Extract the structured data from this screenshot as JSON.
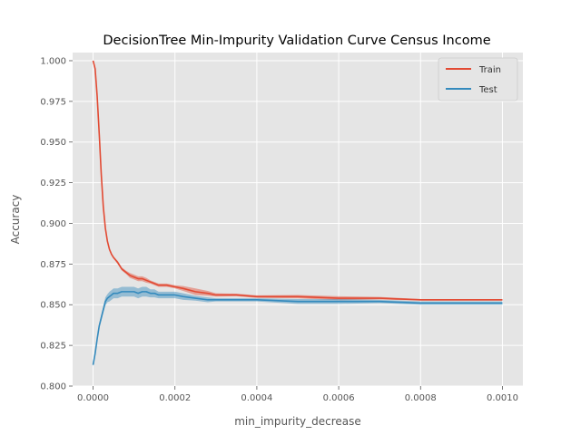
{
  "chart_data": {
    "type": "line",
    "title": "DecisionTree Min-Impurity Validation Curve Census Income",
    "xlabel": "min_impurity_decrease",
    "ylabel": "Accuracy",
    "xlim": [
      -5e-05,
      0.00105
    ],
    "ylim": [
      0.8,
      1.005
    ],
    "xticks": [
      0.0,
      0.0002,
      0.0004,
      0.0006,
      0.0008,
      0.001
    ],
    "xtick_labels": [
      "0.0000",
      "0.0002",
      "0.0004",
      "0.0006",
      "0.0008",
      "0.0010"
    ],
    "yticks": [
      0.8,
      0.825,
      0.85,
      0.875,
      0.9,
      0.925,
      0.95,
      0.975,
      1.0
    ],
    "ytick_labels": [
      "0.800",
      "0.825",
      "0.850",
      "0.875",
      "0.900",
      "0.925",
      "0.950",
      "0.975",
      "1.000"
    ],
    "grid": true,
    "legend_position": "top-right",
    "series": [
      {
        "name": "Train",
        "color": "#E24A33",
        "x": [
          0.0,
          5e-06,
          1e-05,
          1.5e-05,
          2e-05,
          2.5e-05,
          3e-05,
          3.5e-05,
          4e-05,
          4.5e-05,
          5e-05,
          6e-05,
          7e-05,
          8e-05,
          9e-05,
          0.0001,
          0.00011,
          0.00012,
          0.00013,
          0.00014,
          0.00015,
          0.00016,
          0.00018,
          0.0002,
          0.00022,
          0.00025,
          0.00028,
          0.0003,
          0.00035,
          0.0004,
          0.0005,
          0.0006,
          0.0007,
          0.0008,
          0.0009,
          0.001
        ],
        "values": [
          1.0,
          0.995,
          0.978,
          0.955,
          0.93,
          0.91,
          0.897,
          0.889,
          0.884,
          0.881,
          0.879,
          0.876,
          0.872,
          0.87,
          0.868,
          0.867,
          0.866,
          0.866,
          0.865,
          0.864,
          0.863,
          0.862,
          0.862,
          0.861,
          0.86,
          0.858,
          0.857,
          0.856,
          0.856,
          0.855,
          0.855,
          0.854,
          0.854,
          0.853,
          0.853,
          0.853
        ],
        "band": [
          0.0,
          0.0,
          0.0,
          0.0005,
          0.0005,
          0.0005,
          0.0005,
          0.0005,
          0.0005,
          0.0005,
          0.0005,
          0.001,
          0.001,
          0.001,
          0.0015,
          0.0015,
          0.0015,
          0.0015,
          0.0015,
          0.001,
          0.001,
          0.001,
          0.001,
          0.001,
          0.0015,
          0.002,
          0.0015,
          0.001,
          0.0008,
          0.0008,
          0.001,
          0.0012,
          0.0008,
          0.0005,
          0.0005,
          0.0005
        ]
      },
      {
        "name": "Test",
        "color": "#348ABD",
        "x": [
          0.0,
          5e-06,
          1e-05,
          1.5e-05,
          2e-05,
          2.5e-05,
          3e-05,
          3.5e-05,
          4e-05,
          4.5e-05,
          5e-05,
          6e-05,
          7e-05,
          8e-05,
          9e-05,
          0.0001,
          0.00011,
          0.00012,
          0.00013,
          0.00014,
          0.00015,
          0.00016,
          0.00018,
          0.0002,
          0.00022,
          0.00025,
          0.00028,
          0.0003,
          0.00035,
          0.0004,
          0.0005,
          0.0006,
          0.0007,
          0.0008,
          0.0009,
          0.001
        ],
        "values": [
          0.813,
          0.82,
          0.829,
          0.837,
          0.842,
          0.847,
          0.852,
          0.854,
          0.855,
          0.856,
          0.857,
          0.857,
          0.858,
          0.858,
          0.858,
          0.858,
          0.857,
          0.858,
          0.858,
          0.857,
          0.857,
          0.856,
          0.856,
          0.856,
          0.855,
          0.854,
          0.853,
          0.853,
          0.853,
          0.853,
          0.852,
          0.852,
          0.852,
          0.851,
          0.851,
          0.851
        ],
        "band": [
          0.001,
          0.001,
          0.001,
          0.0015,
          0.002,
          0.002,
          0.0025,
          0.0025,
          0.003,
          0.003,
          0.003,
          0.003,
          0.003,
          0.003,
          0.003,
          0.003,
          0.003,
          0.003,
          0.003,
          0.0025,
          0.0025,
          0.002,
          0.002,
          0.002,
          0.002,
          0.0015,
          0.0015,
          0.001,
          0.001,
          0.001,
          0.0015,
          0.0015,
          0.001,
          0.001,
          0.001,
          0.001
        ]
      }
    ]
  }
}
